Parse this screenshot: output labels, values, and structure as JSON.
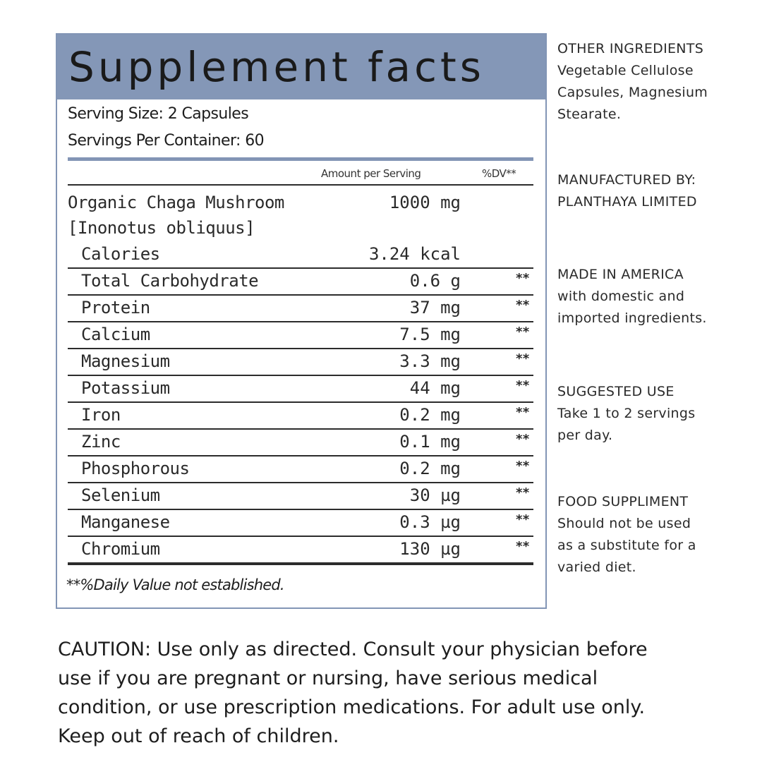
{
  "panel": {
    "title": "Supplement facts",
    "serving_size": "Serving Size: 2 Capsules",
    "servings_per_container": "Servings Per Container: 60",
    "col_amount": "Amount per Serving",
    "col_dv": "%DV**",
    "main_ingredient_line1": "Organic Chaga Mushroom",
    "main_ingredient_line2": "[Inonotus obliquus]",
    "main_amount": "1000 mg",
    "rows": [
      {
        "name": "Calories",
        "amount": "3.24 kcal",
        "dv": ""
      },
      {
        "name": "Total Carbohydrate",
        "amount": "0.6 g",
        "dv": "**"
      },
      {
        "name": "Protein",
        "amount": "37 mg",
        "dv": "**"
      },
      {
        "name": "Calcium",
        "amount": "7.5 mg",
        "dv": "**"
      },
      {
        "name": "Magnesium",
        "amount": "3.3 mg",
        "dv": "**"
      },
      {
        "name": "Potassium",
        "amount": "44 mg",
        "dv": "**"
      },
      {
        "name": "Iron",
        "amount": "0.2 mg",
        "dv": "**"
      },
      {
        "name": "Zinc",
        "amount": "0.1 mg",
        "dv": "**"
      },
      {
        "name": "Phosphorous",
        "amount": "0.2 mg",
        "dv": "**"
      },
      {
        "name": "Selenium",
        "amount": "30 µg",
        "dv": "**"
      },
      {
        "name": "Manganese",
        "amount": "0.3 µg",
        "dv": "**"
      },
      {
        "name": "Chromium",
        "amount": "130 µg",
        "dv": "**"
      }
    ],
    "footnote": "**%Daily Value not established."
  },
  "side": {
    "other_ingredients": {
      "heading": "OTHER INGREDIENTS",
      "lines": [
        "Vegetable Cellulose",
        "Capsules, Magnesium",
        "Stearate."
      ]
    },
    "manufacturer": {
      "heading": "MANUFACTURED BY:",
      "lines": [
        "PLANTHAYA LIMITED"
      ]
    },
    "made_in": {
      "heading": "MADE IN AMERICA",
      "lines": [
        "with domestic and",
        "imported ingredients."
      ]
    },
    "suggested_use": {
      "heading": "SUGGESTED USE",
      "lines": [
        "Take 1 to 2 servings",
        "per day."
      ]
    },
    "food_supplement": {
      "heading": "FOOD SUPPLIMENT",
      "lines": [
        "Should not be used",
        "as a substitute for a",
        "varied diet."
      ]
    }
  },
  "caution": {
    "lines": [
      "CAUTION: Use only as directed. Consult your physician before",
      "use if you are pregnant or nursing, have serious medical",
      "condition, or use prescription medications. For adult use only.",
      "Keep out of reach of children."
    ]
  },
  "colors": {
    "header_bg": "#8497b7",
    "border": "#8295b5",
    "text": "#222222"
  }
}
